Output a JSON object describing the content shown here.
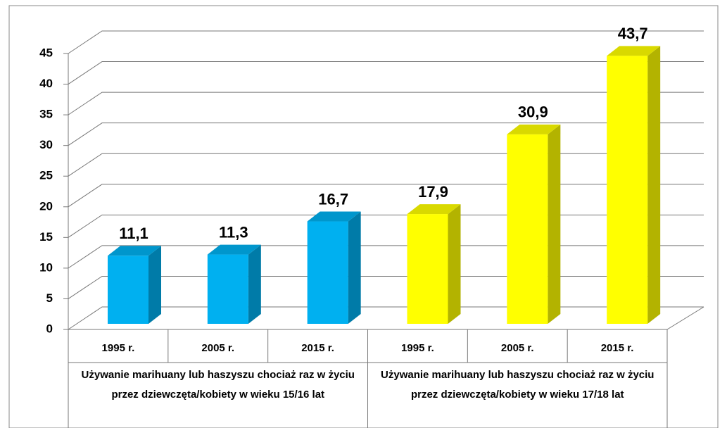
{
  "chart_data": {
    "type": "bar",
    "categories": [
      "1995 r.",
      "2005 r.",
      "2015 r."
    ],
    "series": [
      {
        "name": "Używanie marihuany lub haszyszu chociaż raz w życiu przez dziewczęta/kobiety w wieku 15/16 lat",
        "color": "#00b0f0",
        "values": [
          11.1,
          11.3,
          16.7
        ],
        "value_labels": [
          "11,1",
          "11,3",
          "16,7"
        ]
      },
      {
        "name": "Używanie marihuany lub haszyszu chociaż raz w życiu przez dziewczęta/kobiety w wieku 17/18 lat",
        "color": "#ffff00",
        "values": [
          17.9,
          30.9,
          43.7
        ],
        "value_labels": [
          "17,9",
          "30,9",
          "43,7"
        ]
      }
    ],
    "ylim": [
      0,
      45
    ],
    "yticks": [
      0,
      5,
      10,
      15,
      20,
      25,
      30,
      35,
      40,
      45
    ],
    "grid": true
  }
}
